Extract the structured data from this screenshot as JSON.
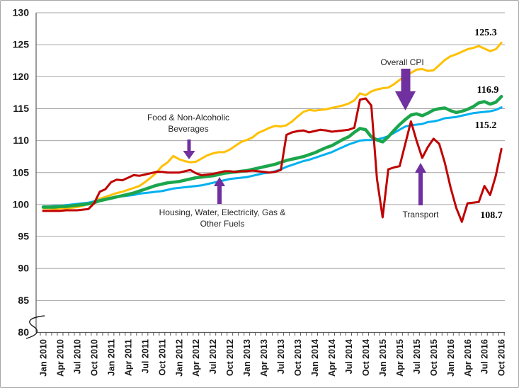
{
  "chart_data": {
    "type": "line",
    "title": "",
    "xlabel": "",
    "ylabel": "",
    "ylim": [
      80,
      130
    ],
    "y_ticks": [
      130,
      125,
      120,
      115,
      110,
      105,
      100,
      95,
      90,
      85,
      80
    ],
    "y_axis_break": true,
    "grid": "horizontal",
    "x_unit": "monthly",
    "x_tick_labels": [
      "Jan 2010",
      "Apr 2010",
      "Jul 2010",
      "Oct 2010",
      "Jan 2011",
      "Apr 2011",
      "Jul 2011",
      "Oct 2011",
      "Jan 2012",
      "Apr 2012",
      "Jul 2012",
      "Oct 2012",
      "Jan 2013",
      "Apr 2013",
      "Jul 2013",
      "Oct 2013",
      "Jan 2014",
      "Apr 2014",
      "Jul 2014",
      "Oct 2014",
      "Jan 2015",
      "Apr 2015",
      "Jul 2015",
      "Oct 2015",
      "Jan 2016",
      "Apr 2016",
      "Jul 2016",
      "Oct 2016"
    ],
    "months_per_tick": 3,
    "arrow_color": "#7030A0",
    "series": [
      {
        "name": "Food & Non-Alcoholic Beverages",
        "color": "#FFC000",
        "width": 3,
        "end_label": "125.3",
        "values": [
          99.4,
          99.4,
          99.3,
          99.4,
          99.4,
          99.5,
          99.6,
          99.8,
          100.1,
          100.5,
          100.9,
          101.2,
          101.5,
          101.8,
          102.0,
          102.3,
          102.6,
          102.9,
          103.5,
          104.2,
          105.0,
          106.0,
          106.6,
          107.6,
          107.1,
          106.8,
          106.6,
          106.7,
          107.2,
          107.7,
          108.0,
          108.2,
          108.2,
          108.6,
          109.2,
          109.8,
          110.1,
          110.5,
          111.2,
          111.6,
          112.0,
          112.3,
          112.2,
          112.4,
          113.0,
          113.8,
          114.5,
          114.8,
          114.7,
          114.8,
          114.9,
          115.1,
          115.3,
          115.5,
          115.8,
          116.3,
          117.4,
          117.1,
          117.7,
          118.0,
          118.2,
          118.3,
          118.8,
          119.5,
          120.1,
          120.6,
          121.1,
          121.2,
          120.9,
          121.0,
          121.8,
          122.6,
          123.2,
          123.5,
          123.9,
          124.3,
          124.5,
          124.8,
          124.4,
          124.0,
          124.3,
          125.3
        ]
      },
      {
        "name": "Housing, Water, Electricity, Gas & Other Fuels",
        "color": "#00B0F0",
        "width": 3,
        "end_label": "115.2",
        "values": [
          99.7,
          99.7,
          99.8,
          99.8,
          99.9,
          100.0,
          100.1,
          100.2,
          100.3,
          100.5,
          100.7,
          100.9,
          101.1,
          101.2,
          101.3,
          101.4,
          101.5,
          101.7,
          101.8,
          101.9,
          102.0,
          102.1,
          102.3,
          102.5,
          102.6,
          102.7,
          102.8,
          102.9,
          103.0,
          103.2,
          103.4,
          103.6,
          103.8,
          104.0,
          104.1,
          104.2,
          104.3,
          104.5,
          104.7,
          104.9,
          105.0,
          105.2,
          105.5,
          105.9,
          106.2,
          106.5,
          106.8,
          107.0,
          107.3,
          107.6,
          107.9,
          108.2,
          108.6,
          109.0,
          109.4,
          109.7,
          110.0,
          110.1,
          110.1,
          110.2,
          110.4,
          110.7,
          111.2,
          111.7,
          112.2,
          112.4,
          112.5,
          112.6,
          112.9,
          113.0,
          113.2,
          113.5,
          113.6,
          113.7,
          113.9,
          114.1,
          114.3,
          114.4,
          114.5,
          114.6,
          114.8,
          115.2
        ]
      },
      {
        "name": "Overall CPI",
        "color": "#1CA64C",
        "width": 4.5,
        "end_label": "116.9",
        "values": [
          99.6,
          99.6,
          99.6,
          99.7,
          99.7,
          99.8,
          99.9,
          100.0,
          100.1,
          100.3,
          100.6,
          100.8,
          101.0,
          101.2,
          101.4,
          101.6,
          101.8,
          102.1,
          102.4,
          102.7,
          103.0,
          103.2,
          103.4,
          103.5,
          103.6,
          103.8,
          104.0,
          104.2,
          104.3,
          104.4,
          104.5,
          104.7,
          104.9,
          105.0,
          105.1,
          105.2,
          105.3,
          105.5,
          105.7,
          105.9,
          106.1,
          106.3,
          106.6,
          106.9,
          107.1,
          107.3,
          107.5,
          107.8,
          108.1,
          108.5,
          108.9,
          109.2,
          109.7,
          110.2,
          110.6,
          111.3,
          111.9,
          111.7,
          110.6,
          110.1,
          109.8,
          110.6,
          111.6,
          112.5,
          113.3,
          114.0,
          114.2,
          113.9,
          114.3,
          114.8,
          115.0,
          115.1,
          114.7,
          114.4,
          114.6,
          114.9,
          115.3,
          115.9,
          116.1,
          115.7,
          116.0,
          116.9
        ]
      },
      {
        "name": "Transport",
        "color": "#C00000",
        "width": 3,
        "end_label": "108.7",
        "values": [
          99.0,
          99.0,
          99.0,
          99.0,
          99.1,
          99.1,
          99.1,
          99.2,
          99.3,
          100.2,
          102.0,
          102.4,
          103.5,
          103.9,
          103.8,
          104.2,
          104.6,
          104.5,
          104.7,
          104.9,
          105.1,
          105.1,
          105.0,
          105.0,
          105.0,
          105.2,
          105.4,
          104.9,
          104.6,
          104.7,
          104.8,
          105.0,
          105.2,
          105.2,
          105.1,
          105.2,
          105.2,
          105.3,
          105.2,
          105.1,
          105.0,
          105.1,
          105.4,
          110.9,
          111.3,
          111.5,
          111.6,
          111.3,
          111.5,
          111.7,
          111.6,
          111.4,
          111.5,
          111.6,
          111.7,
          112.0,
          116.4,
          116.6,
          115.5,
          104.0,
          98.0,
          105.5,
          105.8,
          106.0,
          109.5,
          113.0,
          110.0,
          107.3,
          109.0,
          110.3,
          109.5,
          106.5,
          102.7,
          99.5,
          97.3,
          100.2,
          100.3,
          100.4,
          102.9,
          101.5,
          104.5,
          108.7
        ]
      }
    ],
    "annotations": [
      {
        "text_lines": [
          "Food & Non-Alcoholic",
          "Beverages"
        ],
        "arrow": "down",
        "points_to": "Food & Non-Alcoholic Beverages"
      },
      {
        "text_lines": [
          "Overall CPI"
        ],
        "arrow": "down-large",
        "points_to": "Overall CPI"
      },
      {
        "text_lines": [
          "Housing, Water, Electricity, Gas &",
          "Other Fuels"
        ],
        "arrow": "up",
        "points_to": "Housing, Water, Electricity, Gas & Other Fuels"
      },
      {
        "text_lines": [
          "Transport"
        ],
        "arrow": "up",
        "points_to": "Transport"
      }
    ]
  }
}
